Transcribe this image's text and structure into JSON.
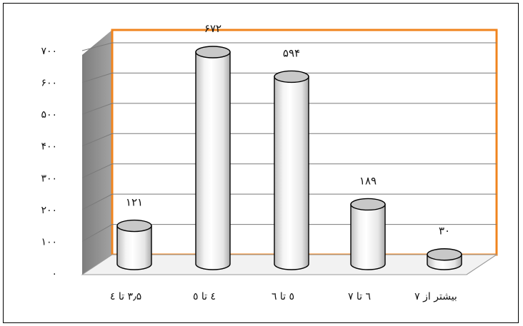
{
  "chart_data": {
    "type": "bar",
    "style": "3d-cylinder",
    "categories": [
      "۳٫۵ تا ٤",
      "٤ تا ٥",
      "٥ تا ٦",
      "٦ تا ٧",
      "بیشتر از ٧"
    ],
    "values": [
      121,
      672,
      594,
      189,
      30
    ],
    "value_labels": [
      "۱۲۱",
      "۶۷۲",
      "۵۹۴",
      "۱۸۹",
      "۳۰"
    ],
    "y_ticks": [
      "۰",
      "۱۰۰",
      "۲۰۰",
      "۳۰۰",
      "۴۰۰",
      "۵۰۰",
      "۶۰۰",
      "۷۰۰"
    ],
    "ylim": [
      0,
      700
    ],
    "grid": true,
    "legend": "none",
    "colors": {
      "wall_border": "#f0841e",
      "side_wall": "#8c8c8c",
      "gridline": "#7a7a7a",
      "bar_fill": "#ffffff",
      "bar_top": "#c8c8c8"
    }
  }
}
